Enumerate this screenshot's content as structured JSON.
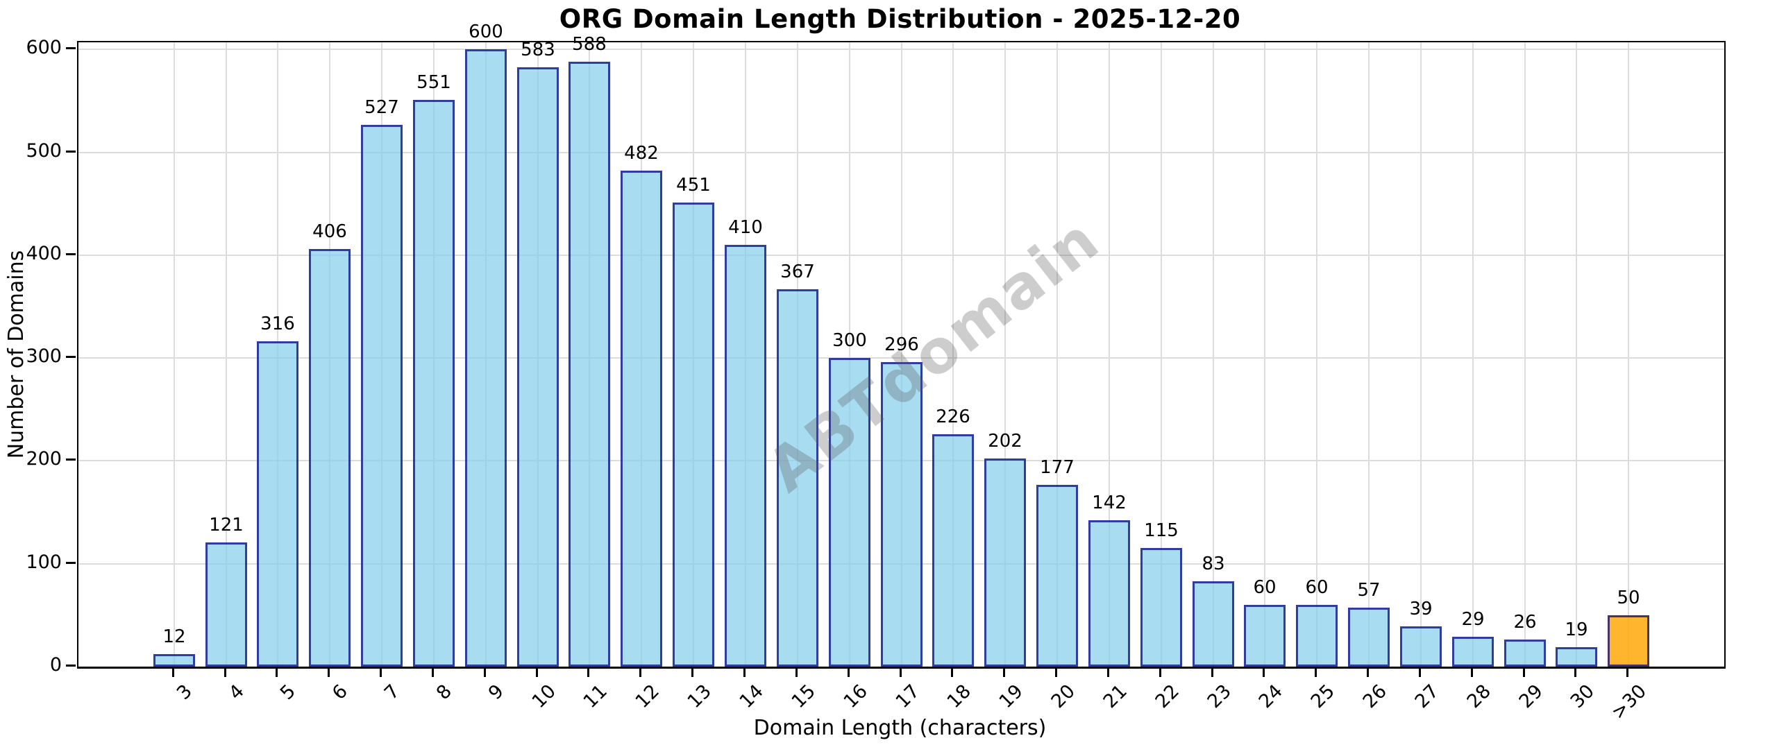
{
  "chart_data": {
    "type": "bar",
    "title": "ORG Domain Length Distribution - 2025-12-20",
    "xlabel": "Domain Length (characters)",
    "ylabel": "Number of Domains",
    "categories": [
      "3",
      "4",
      "5",
      "6",
      "7",
      "8",
      "9",
      "10",
      "11",
      "12",
      "13",
      "14",
      "15",
      "16",
      "17",
      "18",
      "19",
      "20",
      "21",
      "22",
      "23",
      "24",
      "25",
      "26",
      "27",
      "28",
      "29",
      "30",
      ">30"
    ],
    "values": [
      12,
      121,
      316,
      406,
      527,
      551,
      600,
      583,
      588,
      482,
      451,
      410,
      367,
      300,
      296,
      226,
      202,
      177,
      142,
      115,
      83,
      60,
      60,
      57,
      39,
      29,
      26,
      19,
      50
    ],
    "value_labels_shown": true,
    "yticks": [
      0,
      100,
      200,
      300,
      400,
      500,
      600
    ],
    "ylim": [
      0,
      607
    ],
    "grid": "both",
    "legend": "none",
    "bar_fill_color": "#87CEEB",
    "bar_edge_color": "#000080",
    "highlight_category": ">30",
    "highlight_fill_color": "#FFA500",
    "gridline_color": "#dcdcdc",
    "watermark": "ABTdomain",
    "xtick_rotation_deg": 45
  }
}
